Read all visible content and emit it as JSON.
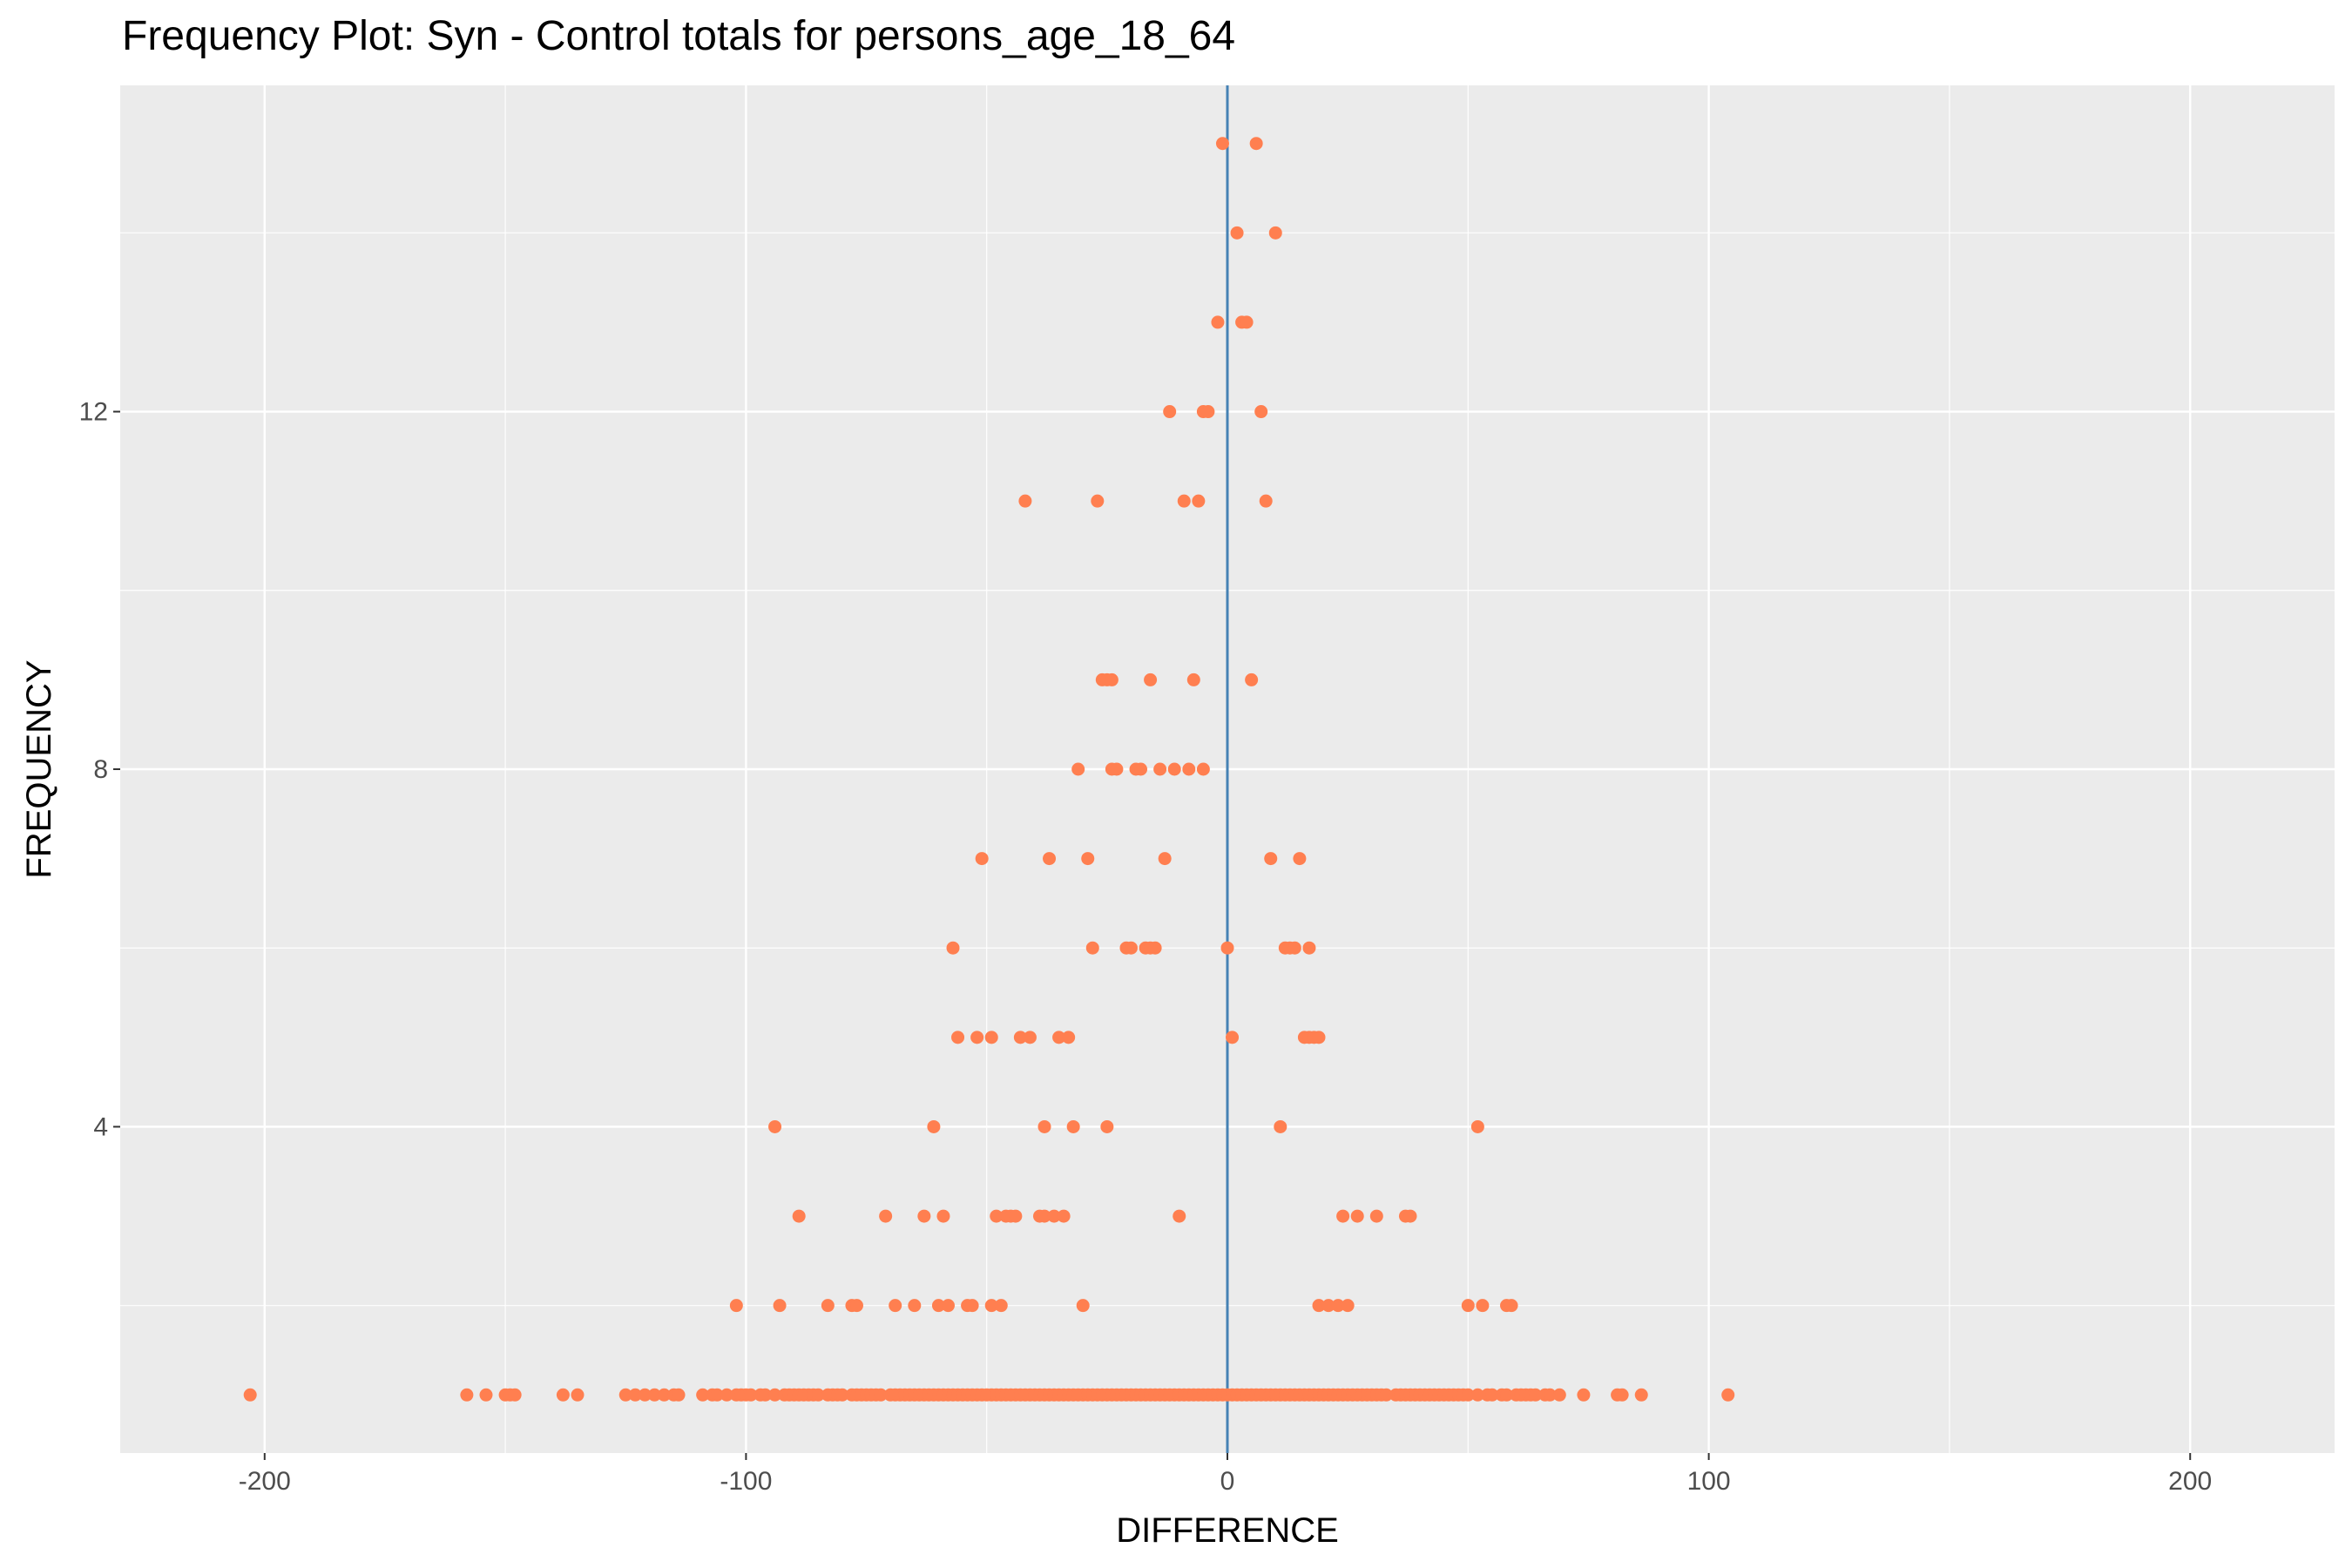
{
  "chart_data": {
    "type": "scatter",
    "title": "Frequency Plot: Syn - Control totals for persons_age_18_64",
    "xlabel": "DIFFERENCE",
    "ylabel": "FREQUENCY",
    "xlim": [
      -230,
      230
    ],
    "ylim": [
      0.35,
      15.65
    ],
    "x_ticks": [
      -200,
      -100,
      0,
      100,
      200
    ],
    "y_ticks": [
      4,
      8,
      12
    ],
    "grid": true,
    "colors": {
      "points": "#ff7f50",
      "vline": "#4682b4",
      "panel": "#ebebeb",
      "grid": "#ffffff"
    },
    "vline_x": 0,
    "series": [
      {
        "values": [
          {
            "y": 15,
            "x": [
              -1,
              6
            ]
          },
          {
            "y": 14,
            "x": [
              2,
              10
            ]
          },
          {
            "y": 13,
            "x": [
              -2,
              3,
              4
            ]
          },
          {
            "y": 12,
            "x": [
              -12,
              -5,
              -4,
              7
            ]
          },
          {
            "y": 11,
            "x": [
              -42,
              -27,
              -9,
              -6,
              8
            ]
          },
          {
            "y": 9,
            "x": [
              -26,
              -25,
              -24,
              -16,
              -7,
              5
            ]
          },
          {
            "y": 8,
            "x": [
              -31,
              -24,
              -23,
              -19,
              -18,
              -14,
              -11,
              -8,
              -5
            ]
          },
          {
            "y": 7,
            "x": [
              -51,
              -37,
              -29,
              -13,
              9,
              15
            ]
          },
          {
            "y": 6,
            "x": [
              -57,
              -28,
              -21,
              -20,
              -17,
              -16,
              -15,
              0,
              12,
              13,
              14,
              17
            ]
          },
          {
            "y": 5,
            "x": [
              -56,
              -52,
              -49,
              -43,
              -41,
              -35,
              -33,
              1,
              16,
              17,
              18,
              19
            ]
          },
          {
            "y": 4,
            "x": [
              -94,
              -61,
              -38,
              -32,
              -25,
              11,
              52
            ]
          },
          {
            "y": 3,
            "x": [
              -89,
              -71,
              -63,
              -59,
              -48,
              -46,
              -45,
              -44,
              -39,
              -38,
              -36,
              -34,
              -10,
              24,
              27,
              31,
              37,
              38
            ]
          },
          {
            "y": 2,
            "x": [
              -102,
              -93,
              -83,
              -78,
              -77,
              -69,
              -65,
              -60,
              -58,
              -54,
              -53,
              -49,
              -47,
              -30,
              19,
              21,
              23,
              25,
              50,
              53,
              58,
              59
            ]
          },
          {
            "y": 1,
            "x": [
              -203,
              -158,
              -154,
              -150,
              -149,
              -148,
              -138,
              -135,
              -125,
              -123,
              -121,
              -119,
              -117,
              -115,
              -114,
              -109,
              -107,
              -106,
              -104,
              -102,
              -101,
              -100,
              -99,
              -97,
              -96,
              -94,
              -92,
              -91,
              -90,
              -89,
              -88,
              -87,
              -86,
              -85,
              -83,
              -82,
              -81,
              -80,
              -78,
              -77,
              -76,
              -75,
              -74,
              -73,
              -72,
              -70,
              -69,
              -68,
              -67,
              -66,
              -65,
              -64,
              -63,
              -62,
              -61,
              -60,
              -59,
              -58,
              -57,
              -56,
              -55,
              -54,
              -53,
              -52,
              -51,
              -50,
              -49,
              -48,
              -47,
              -46,
              -45,
              -44,
              -43,
              -42,
              -41,
              -40,
              -39,
              -38,
              -37,
              -36,
              -35,
              -34,
              -33,
              -32,
              -31,
              -30,
              -29,
              -28,
              -27,
              -26,
              -25,
              -24,
              -23,
              -22,
              -21,
              -20,
              -19,
              -18,
              -17,
              -16,
              -15,
              -14,
              -13,
              -12,
              -11,
              -10,
              -9,
              -8,
              -7,
              -6,
              -5,
              -4,
              -3,
              -2,
              -1,
              0,
              1,
              2,
              3,
              4,
              5,
              6,
              7,
              8,
              9,
              10,
              11,
              12,
              13,
              14,
              15,
              16,
              17,
              18,
              19,
              20,
              21,
              22,
              23,
              24,
              25,
              26,
              27,
              28,
              29,
              30,
              31,
              32,
              33,
              35,
              36,
              37,
              38,
              39,
              40,
              41,
              42,
              43,
              44,
              45,
              46,
              47,
              48,
              49,
              50,
              52,
              54,
              55,
              57,
              58,
              60,
              61,
              62,
              63,
              64,
              66,
              67,
              69,
              74,
              81,
              82,
              86,
              104
            ]
          }
        ]
      }
    ]
  }
}
